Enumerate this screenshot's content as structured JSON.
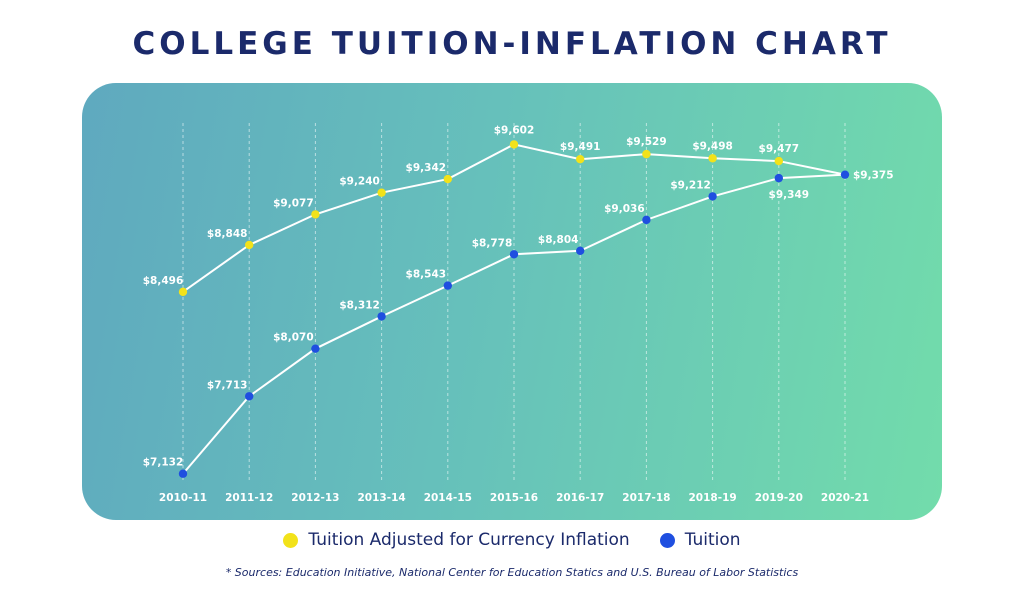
{
  "title": "COLLEGE TUITION-INFLATION CHART",
  "source_note": "* Sources: Education Initiative, National Center for Education Statics and U.S. Bureau of Labor Statistics",
  "colors": {
    "title": "#1b2a6b",
    "adjusted": "#f2e21a",
    "tuition": "#1f4fe0",
    "line": "#ffffff"
  },
  "chart_data": {
    "type": "line",
    "categories": [
      "2010-11",
      "2011-12",
      "2012-13",
      "2013-14",
      "2014-15",
      "2015-16",
      "2016-17",
      "2017-18",
      "2018-19",
      "2019-20",
      "2020-21"
    ],
    "series": [
      {
        "name": "Tuition Adjusted for Currency Inflation",
        "values": [
          8496,
          8848,
          9077,
          9240,
          9342,
          9602,
          9491,
          9529,
          9498,
          9477,
          9375
        ],
        "labels": [
          "$8,496",
          "$8,848",
          "$9,077",
          "$9,240",
          "$9,342",
          "$9,602",
          "$9,491",
          "$9,529",
          "$9,498",
          "$9,477",
          null
        ]
      },
      {
        "name": "Tuition",
        "values": [
          7132,
          7713,
          8070,
          8312,
          8543,
          8778,
          8804,
          9036,
          9212,
          9349,
          9375
        ],
        "labels": [
          "$7,132",
          "$7,713",
          "$8,070",
          "$8,312",
          "$8,543",
          "$8,778",
          "$8,804",
          "$9,036",
          "$9,212",
          "$9,349",
          "$9,375"
        ]
      }
    ],
    "ylim": [
      7100,
      9650
    ],
    "grid": "vertical dashed",
    "legend": "bottom"
  }
}
